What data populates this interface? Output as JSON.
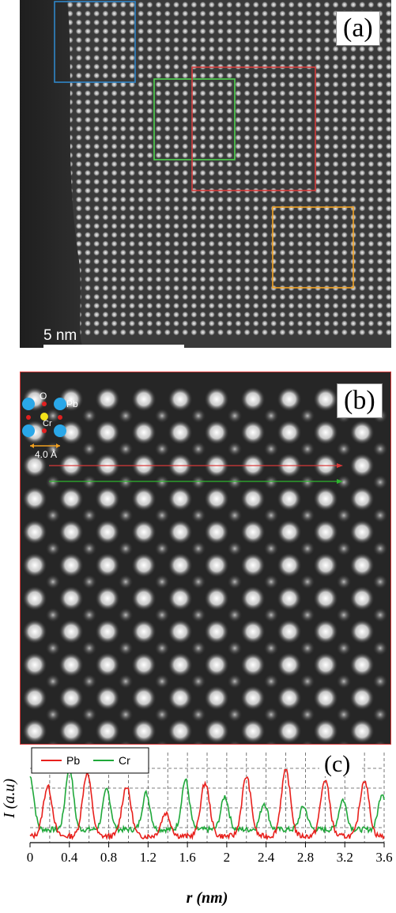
{
  "panel_a": {
    "label": "(a)",
    "scale_bar_label": "5 nm",
    "boxes": [
      {
        "name": "blue",
        "color": "#2f86c8"
      },
      {
        "name": "green",
        "color": "#4fd44f"
      },
      {
        "name": "red",
        "color": "#d63a3a"
      },
      {
        "name": "orange",
        "color": "#f0a020"
      }
    ]
  },
  "panel_b": {
    "label": "(b)",
    "inset": {
      "o_label": "O",
      "pb_label": "Pb",
      "cr_label": "Cr",
      "spacing_label": "4.0 Å"
    },
    "colors": {
      "pb": "#2aa7e8",
      "cr": "#f3e21a",
      "o": "#e02020",
      "arrow_red": "#d63a3a",
      "arrow_green": "#2fb52f"
    }
  },
  "panel_c": {
    "label": "(c)",
    "colors": {
      "pb": "#e8201c",
      "cr": "#1fa83a"
    }
  },
  "chart_data": {
    "type": "line",
    "xlabel": "r  (nm)",
    "ylabel": "I (a.u)",
    "xlim": [
      0,
      3.6
    ],
    "x_ticks": [
      "0",
      "0.4",
      "0.8",
      "1.2",
      "1.6",
      "2",
      "2.4",
      "2.8",
      "3.2",
      "3.6"
    ],
    "grid": true,
    "legend_placement": "top-left",
    "pb_peaks": [
      0.18,
      0.58,
      0.98,
      1.38,
      1.78,
      2.2,
      2.6,
      3.0,
      3.4
    ],
    "pb_heights": [
      0.75,
      0.95,
      0.75,
      0.35,
      0.8,
      0.9,
      1.0,
      0.85,
      0.85
    ],
    "cr_peaks": [
      0.0,
      0.4,
      0.78,
      1.18,
      1.58,
      1.98,
      2.38,
      2.78,
      3.18,
      3.58
    ],
    "cr_heights": [
      0.8,
      0.95,
      0.6,
      0.55,
      0.75,
      0.5,
      0.4,
      0.35,
      0.45,
      0.55
    ],
    "series": [
      {
        "name": "Pb"
      },
      {
        "name": "Cr"
      }
    ]
  }
}
